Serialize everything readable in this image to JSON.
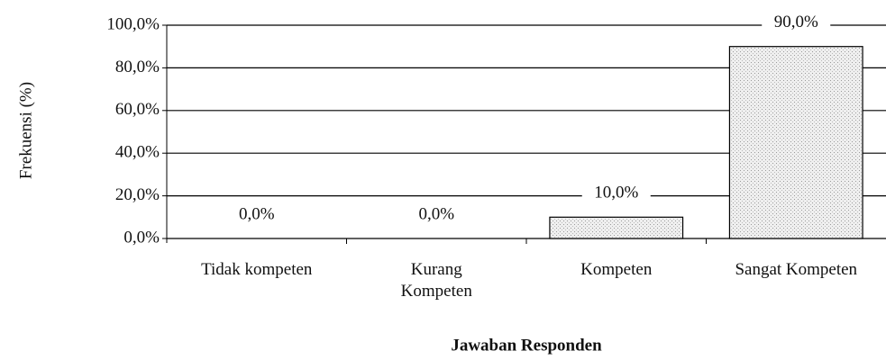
{
  "chart_data": {
    "type": "bar",
    "x_label": "Jawaban Responden",
    "y_label": "Frekuensi (%)",
    "categories": [
      "Tidak kompeten",
      "Kurang Kompeten",
      "Kompeten",
      "Sangat Kompeten"
    ],
    "values": [
      0,
      0,
      10,
      90
    ],
    "value_labels": [
      "0,0%",
      "0,0%",
      "10,0%",
      "90,0%"
    ],
    "color": "#e6e6e6",
    "ylim": [
      0,
      100
    ],
    "yticks": [
      {
        "value": 0,
        "label": "0,0%"
      },
      {
        "value": 20,
        "label": "20,0%"
      },
      {
        "value": 40,
        "label": "40,0%"
      },
      {
        "value": 60,
        "label": "60,0%"
      },
      {
        "value": 80,
        "label": "80,0%"
      },
      {
        "value": 100,
        "label": "100,0%"
      }
    ],
    "grid": true
  }
}
